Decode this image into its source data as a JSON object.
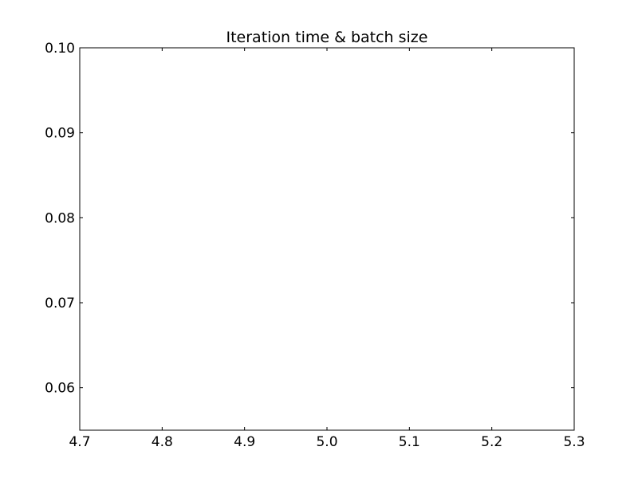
{
  "chart_data": {
    "type": "line",
    "title": "Iteration time & batch size",
    "xlabel": "",
    "ylabel": "",
    "xlim": [
      4.7,
      5.3
    ],
    "ylim": [
      0.055,
      0.1
    ],
    "xticks": [
      "4.7",
      "4.8",
      "4.9",
      "5.0",
      "5.1",
      "5.2",
      "5.3"
    ],
    "yticks": [
      "0.06",
      "0.07",
      "0.08",
      "0.09",
      "0.10"
    ],
    "series": [],
    "grid": false,
    "legend": "none",
    "colors": {
      "axes": "#000000",
      "background": "#ffffff"
    }
  }
}
